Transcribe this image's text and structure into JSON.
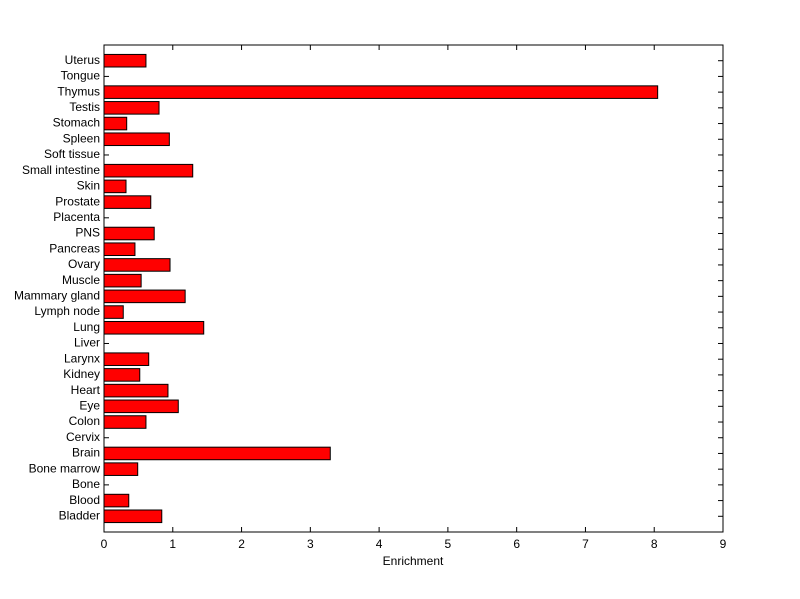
{
  "chart_data": {
    "type": "barh",
    "xlabel": "Enrichment",
    "categories": [
      "Bladder",
      "Blood",
      "Bone",
      "Bone marrow",
      "Brain",
      "Cervix",
      "Colon",
      "Eye",
      "Heart",
      "Kidney",
      "Larynx",
      "Liver",
      "Lung",
      "Lymph node",
      "Mammary gland",
      "Muscle",
      "Ovary",
      "Pancreas",
      "PNS",
      "Placenta",
      "Prostate",
      "Skin",
      "Small intestine",
      "Soft tissue",
      "Spleen",
      "Stomach",
      "Testis",
      "Thymus",
      "Tongue",
      "Uterus"
    ],
    "values": [
      0.84,
      0.36,
      0,
      0.49,
      3.29,
      0,
      0.61,
      1.08,
      0.93,
      0.52,
      0.65,
      0,
      1.45,
      0.28,
      1.18,
      0.54,
      0.96,
      0.45,
      0.73,
      0,
      0.68,
      0.32,
      1.29,
      0,
      0.95,
      0.33,
      0.8,
      8.05,
      0,
      0.61
    ],
    "color": "#ff0000",
    "xlim": [
      0,
      9
    ],
    "xticks": [
      0,
      1,
      2,
      3,
      4,
      5,
      6,
      7,
      8,
      9
    ]
  }
}
